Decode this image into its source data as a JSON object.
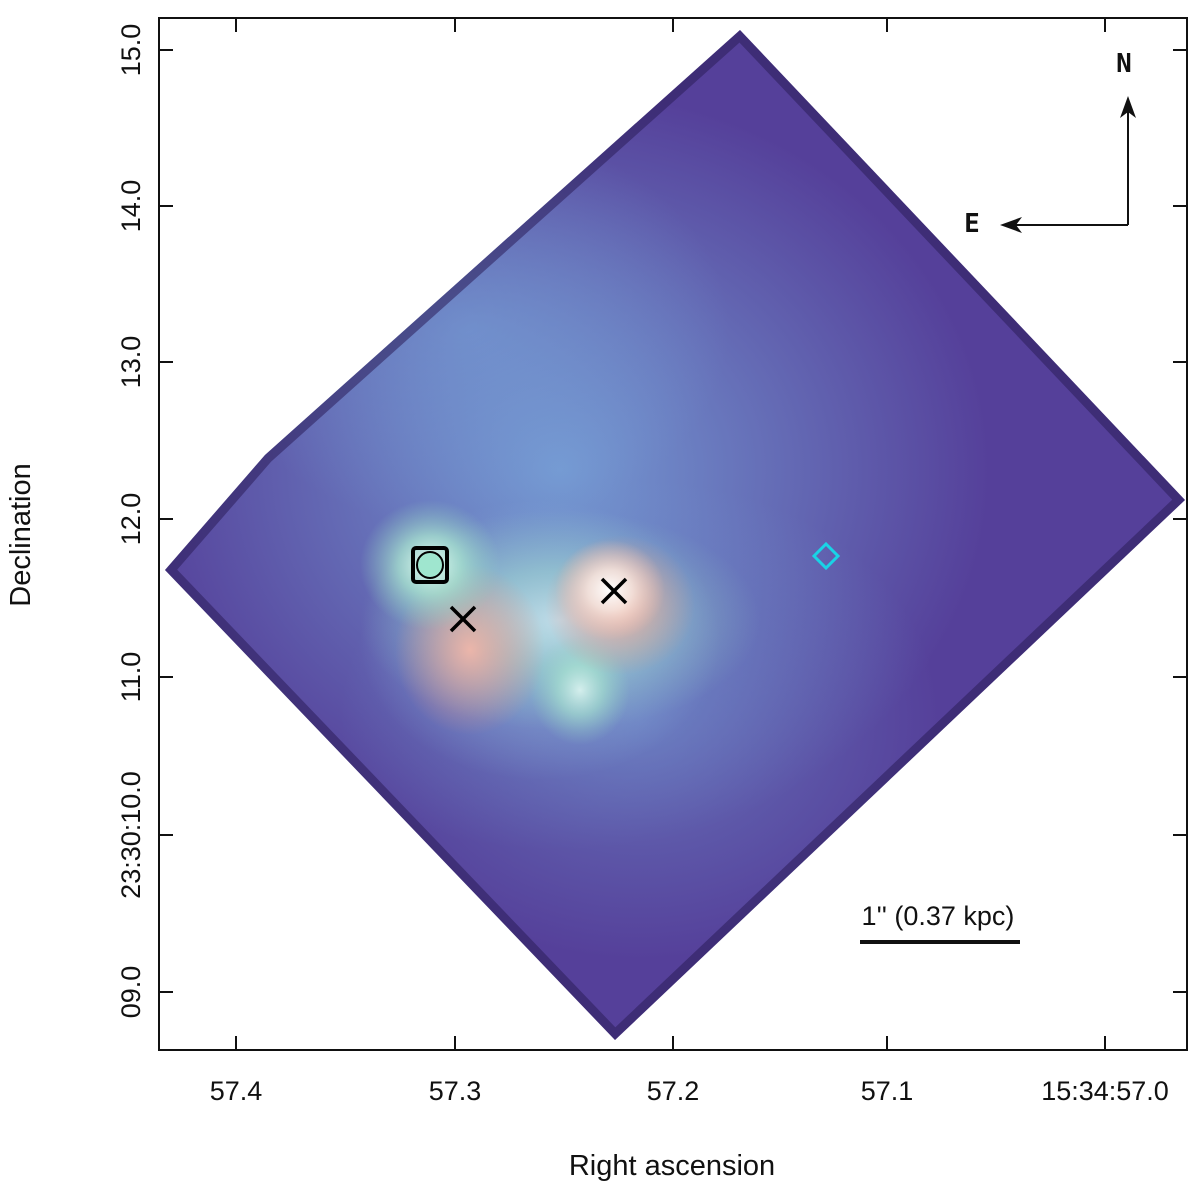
{
  "axes": {
    "x_label": "Right ascension",
    "y_label": "Declination",
    "x_ticks": [
      "57.4",
      "57.3",
      "57.2",
      "57.1",
      "15:34:57.0"
    ],
    "y_ticks": [
      "15.0",
      "14.0",
      "13.0",
      "12.0",
      "11.0",
      "23:30:10.0",
      "09.0"
    ]
  },
  "compass": {
    "north": "N",
    "east": "E"
  },
  "scale_bar": {
    "label": "1'' (0.37 kpc)"
  },
  "markers": [
    {
      "shape": "square",
      "color": "#000000",
      "ra": "57.308",
      "dec": "11.7"
    },
    {
      "shape": "circle",
      "color": "#9fe6cf",
      "ra": "57.308",
      "dec": "11.7"
    },
    {
      "shape": "x",
      "color": "#000000",
      "ra": "57.293",
      "dec": "11.38"
    },
    {
      "shape": "x",
      "color": "#000000",
      "ra": "57.225",
      "dec": "11.55"
    },
    {
      "shape": "diamond",
      "color": "#19d3e6",
      "ra": "57.125",
      "dec": "11.78"
    }
  ],
  "colors": {
    "background": "#5a3f96",
    "emission_blue": "#6fa0d6",
    "emission_cyan": "#b8f0e0",
    "emission_red": "#f5b4a4"
  }
}
